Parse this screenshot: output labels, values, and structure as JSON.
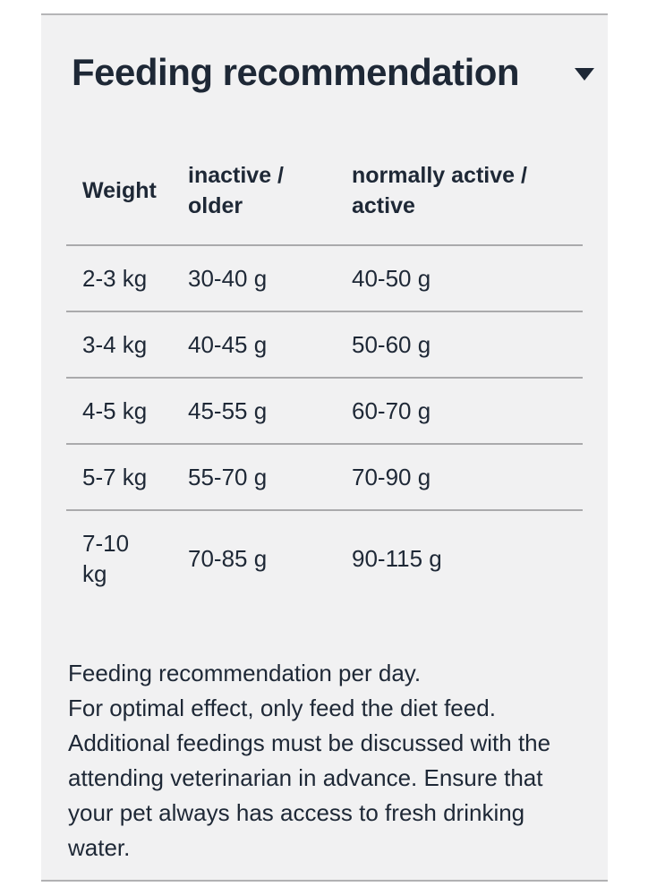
{
  "accordion": {
    "title": "Feeding recommendation",
    "state": "expanded",
    "chevron_icon": "chevron-down"
  },
  "table": {
    "columns": [
      {
        "label": "Weight"
      },
      {
        "label": "inactive / older"
      },
      {
        "label": "normally active / active"
      }
    ],
    "rows": [
      {
        "weight": "2-3 kg",
        "inactive_older": "30-40 g",
        "normally_active_active": "40-50 g"
      },
      {
        "weight": "3-4 kg",
        "inactive_older": "40-45 g",
        "normally_active_active": "50-60 g"
      },
      {
        "weight": "4-5 kg",
        "inactive_older": "45-55 g",
        "normally_active_active": "60-70 g"
      },
      {
        "weight": "5-7 kg",
        "inactive_older": "55-70 g",
        "normally_active_active": "70-90 g"
      },
      {
        "weight": "7-10 kg",
        "inactive_older": "70-85 g",
        "normally_active_active": "90-115 g"
      }
    ]
  },
  "footer": {
    "lines": [
      "Feeding recommendation per day.",
      "For optimal effect, only feed the diet feed.",
      "Additional feedings must be discussed with the",
      "attending veterinarian in advance. Ensure that",
      "your pet always has access to fresh drinking",
      "water."
    ]
  },
  "colors": {
    "text": "#1e2836",
    "card_background": "#f1f1f2",
    "card_border": "#b5b5b7",
    "row_separator": "#aaaaac",
    "page_background": "#ffffff"
  }
}
